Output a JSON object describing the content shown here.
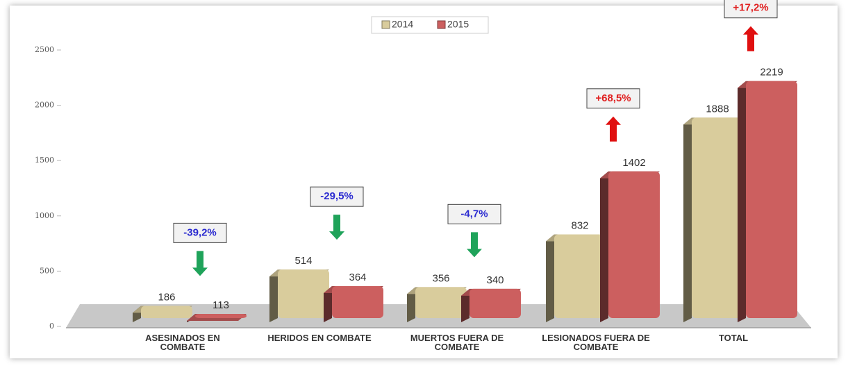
{
  "chart_data": {
    "type": "bar3d",
    "categories": [
      "ASESINADOS EN COMBATE",
      "HERIDOS EN COMBATE",
      "MUERTOS FUERA DE COMBATE",
      "LESIONADOS FUERA DE COMBATE",
      "TOTAL"
    ],
    "series": [
      {
        "name": "2014",
        "color": "#d9cc9c",
        "values": [
          186,
          514,
          356,
          832,
          1888
        ]
      },
      {
        "name": "2015",
        "color": "#cc5f5f",
        "values": [
          113,
          364,
          340,
          1402,
          2219
        ]
      }
    ],
    "change_labels": [
      "-39,2%",
      "-29,5%",
      "-4,7%",
      "+68,5%",
      "+17,2%"
    ],
    "ylim": [
      0,
      2500
    ],
    "yticks": [
      0,
      500,
      1000,
      1500,
      2000,
      2500
    ],
    "grid": false
  }
}
